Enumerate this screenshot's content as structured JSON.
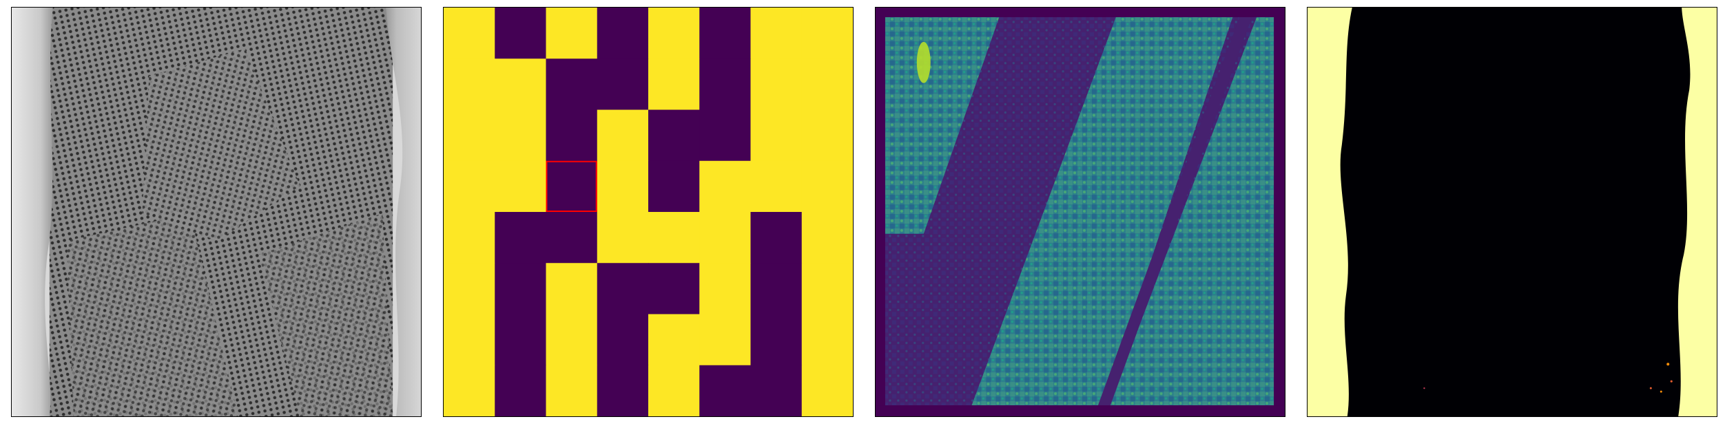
{
  "figure": {
    "panels": [
      {
        "name": "micrograph",
        "kind": "grayscale image"
      },
      {
        "name": "binary-grid",
        "kind": "categorical grid"
      },
      {
        "name": "intensity-map",
        "kind": "viridis image"
      },
      {
        "name": "segmentation-mask",
        "kind": "inferno mask"
      }
    ],
    "grid": {
      "rows": 8,
      "cols": 8,
      "cells": [
        [
          1,
          0,
          1,
          0,
          1,
          0,
          1,
          1
        ],
        [
          1,
          1,
          0,
          0,
          1,
          0,
          1,
          1
        ],
        [
          1,
          1,
          0,
          1,
          0,
          0,
          1,
          1
        ],
        [
          1,
          1,
          0,
          1,
          0,
          1,
          1,
          1
        ],
        [
          1,
          0,
          0,
          1,
          1,
          1,
          0,
          1
        ],
        [
          1,
          0,
          1,
          0,
          0,
          1,
          0,
          1
        ],
        [
          1,
          0,
          1,
          0,
          1,
          1,
          0,
          1
        ],
        [
          1,
          0,
          1,
          0,
          1,
          0,
          0,
          1
        ]
      ],
      "highlight": {
        "row": 3,
        "col": 2
      },
      "colors": {
        "on": "#fde725",
        "off": "#440154",
        "highlight": "#ff0000"
      }
    },
    "colors": {
      "viridis_dark": "#440154",
      "viridis_mid": "#31688e",
      "viridis_teal": "#35b779",
      "viridis_yellow": "#fde725",
      "inferno_black": "#000004",
      "inferno_light": "#fcffa4"
    }
  }
}
